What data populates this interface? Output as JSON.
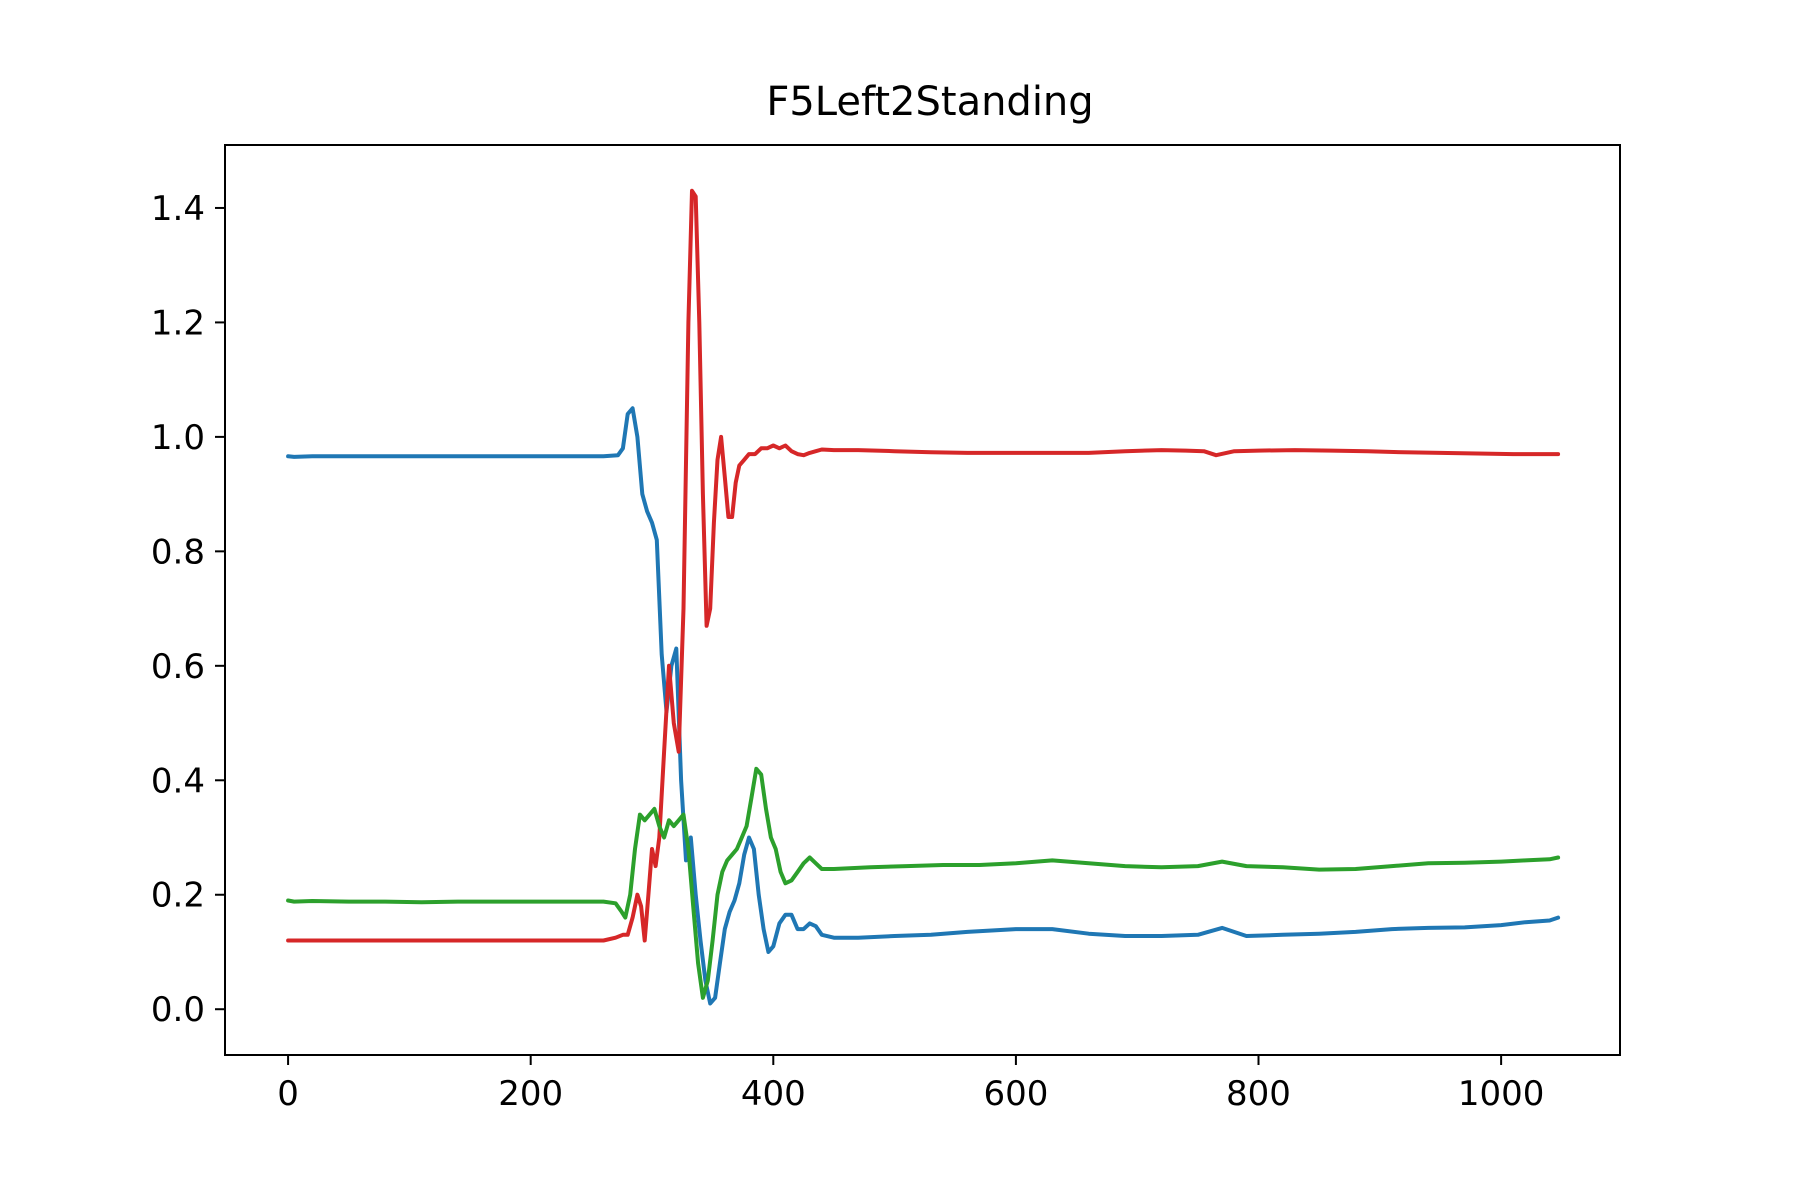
{
  "chart_data": {
    "type": "line",
    "title": "F5Left2Standing",
    "xlabel": "",
    "ylabel": "",
    "xlim": [
      -52,
      1098
    ],
    "ylim": [
      -0.08,
      1.51
    ],
    "x_ticks": [
      0,
      200,
      400,
      600,
      800,
      1000
    ],
    "x_tick_labels": [
      "0",
      "200",
      "400",
      "600",
      "800",
      "1000"
    ],
    "y_ticks": [
      0.0,
      0.2,
      0.4,
      0.6,
      0.8,
      1.0,
      1.2,
      1.4
    ],
    "y_tick_labels": [
      "0.0",
      "0.2",
      "0.4",
      "0.6",
      "0.8",
      "1.0",
      "1.2",
      "1.4"
    ],
    "grid": false,
    "legend": "none",
    "series": [
      {
        "color": "#1f77b4",
        "x": [
          0,
          5,
          20,
          50,
          80,
          110,
          140,
          170,
          200,
          230,
          260,
          272,
          276,
          280,
          284,
          288,
          292,
          296,
          300,
          304,
          308,
          312,
          316,
          320,
          324,
          328,
          332,
          336,
          340,
          344,
          348,
          352,
          356,
          360,
          364,
          368,
          372,
          376,
          380,
          384,
          388,
          392,
          396,
          400,
          405,
          410,
          415,
          420,
          425,
          430,
          435,
          440,
          450,
          470,
          500,
          530,
          560,
          600,
          630,
          660,
          690,
          720,
          750,
          770,
          790,
          820,
          850,
          880,
          910,
          940,
          970,
          1000,
          1020,
          1040,
          1047
        ],
        "y": [
          0.966,
          0.965,
          0.966,
          0.966,
          0.966,
          0.966,
          0.966,
          0.966,
          0.966,
          0.966,
          0.966,
          0.968,
          0.98,
          1.04,
          1.05,
          1.0,
          0.9,
          0.87,
          0.85,
          0.82,
          0.62,
          0.52,
          0.6,
          0.63,
          0.4,
          0.26,
          0.3,
          0.2,
          0.12,
          0.05,
          0.01,
          0.02,
          0.08,
          0.14,
          0.17,
          0.19,
          0.22,
          0.27,
          0.3,
          0.28,
          0.2,
          0.14,
          0.1,
          0.11,
          0.15,
          0.165,
          0.165,
          0.14,
          0.14,
          0.15,
          0.145,
          0.13,
          0.125,
          0.125,
          0.128,
          0.13,
          0.135,
          0.14,
          0.14,
          0.132,
          0.128,
          0.128,
          0.13,
          0.142,
          0.128,
          0.13,
          0.132,
          0.135,
          0.14,
          0.142,
          0.143,
          0.147,
          0.152,
          0.155,
          0.16
        ]
      },
      {
        "color": "#d62728",
        "x": [
          0,
          5,
          20,
          50,
          80,
          110,
          140,
          170,
          200,
          230,
          260,
          270,
          276,
          280,
          284,
          288,
          291,
          294,
          297,
          300,
          303,
          306,
          310,
          314,
          318,
          322,
          326,
          330,
          333,
          336,
          339,
          342,
          345,
          348,
          351,
          354,
          357,
          360,
          363,
          366,
          369,
          372,
          376,
          380,
          385,
          390,
          395,
          400,
          405,
          410,
          415,
          420,
          425,
          430,
          435,
          440,
          450,
          470,
          500,
          530,
          560,
          600,
          630,
          660,
          690,
          720,
          740,
          755,
          765,
          780,
          800,
          830,
          860,
          890,
          920,
          950,
          980,
          1010,
          1030,
          1047
        ],
        "y": [
          0.12,
          0.12,
          0.12,
          0.12,
          0.12,
          0.12,
          0.12,
          0.12,
          0.12,
          0.12,
          0.12,
          0.125,
          0.13,
          0.13,
          0.16,
          0.2,
          0.18,
          0.12,
          0.2,
          0.28,
          0.25,
          0.3,
          0.45,
          0.6,
          0.5,
          0.45,
          0.7,
          1.2,
          1.43,
          1.42,
          1.2,
          0.9,
          0.67,
          0.7,
          0.85,
          0.96,
          1.0,
          0.93,
          0.86,
          0.86,
          0.92,
          0.95,
          0.96,
          0.97,
          0.97,
          0.98,
          0.98,
          0.985,
          0.98,
          0.985,
          0.975,
          0.97,
          0.968,
          0.972,
          0.975,
          0.978,
          0.977,
          0.977,
          0.975,
          0.973,
          0.972,
          0.972,
          0.972,
          0.972,
          0.975,
          0.977,
          0.976,
          0.975,
          0.968,
          0.975,
          0.976,
          0.977,
          0.976,
          0.975,
          0.973,
          0.972,
          0.971,
          0.97,
          0.97,
          0.97
        ]
      },
      {
        "color": "#2ca02c",
        "x": [
          0,
          5,
          20,
          50,
          80,
          110,
          140,
          170,
          200,
          230,
          260,
          270,
          275,
          278,
          282,
          286,
          290,
          294,
          298,
          302,
          306,
          310,
          314,
          318,
          322,
          326,
          330,
          334,
          338,
          342,
          346,
          350,
          354,
          358,
          362,
          366,
          370,
          374,
          378,
          382,
          386,
          390,
          394,
          398,
          402,
          406,
          410,
          415,
          420,
          425,
          430,
          435,
          440,
          450,
          480,
          510,
          540,
          570,
          600,
          630,
          660,
          690,
          720,
          750,
          770,
          790,
          820,
          850,
          880,
          910,
          940,
          970,
          1000,
          1020,
          1040,
          1047
        ],
        "y": [
          0.19,
          0.188,
          0.189,
          0.188,
          0.188,
          0.187,
          0.188,
          0.188,
          0.188,
          0.188,
          0.188,
          0.185,
          0.17,
          0.16,
          0.2,
          0.28,
          0.34,
          0.33,
          0.34,
          0.35,
          0.32,
          0.3,
          0.33,
          0.32,
          0.33,
          0.34,
          0.28,
          0.18,
          0.08,
          0.02,
          0.05,
          0.12,
          0.2,
          0.24,
          0.26,
          0.27,
          0.28,
          0.3,
          0.32,
          0.37,
          0.42,
          0.41,
          0.35,
          0.3,
          0.28,
          0.24,
          0.22,
          0.225,
          0.24,
          0.255,
          0.265,
          0.255,
          0.245,
          0.245,
          0.248,
          0.25,
          0.252,
          0.252,
          0.255,
          0.26,
          0.255,
          0.25,
          0.248,
          0.25,
          0.258,
          0.25,
          0.248,
          0.244,
          0.245,
          0.25,
          0.255,
          0.256,
          0.258,
          0.26,
          0.262,
          0.265
        ]
      }
    ]
  }
}
